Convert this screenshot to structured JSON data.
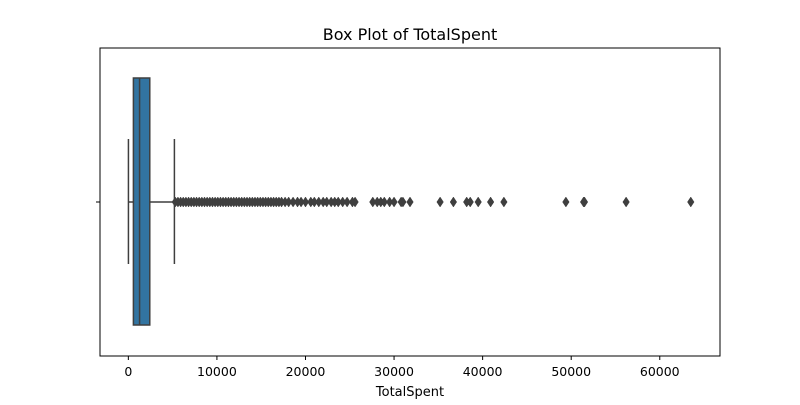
{
  "chart_data": {
    "type": "box",
    "title": "Box Plot of TotalSpent",
    "xlabel": "TotalSpent",
    "ylabel": "",
    "xlim": [
      -3200,
      66800
    ],
    "xticks": [
      0,
      10000,
      20000,
      30000,
      40000,
      50000,
      60000
    ],
    "xtick_labels": [
      "0",
      "10000",
      "20000",
      "30000",
      "40000",
      "50000",
      "60000"
    ],
    "grid": false,
    "colors": {
      "box_fill": "#3274a1",
      "lines": "#3f3f3f",
      "outliers": "#3f3f3f"
    },
    "box": {
      "whisker_low": 10,
      "q1": 570,
      "median": 1270,
      "q3": 2420,
      "whisker_high": 5200
    },
    "outliers": [
      5300,
      5600,
      5900,
      6200,
      6500,
      6800,
      7100,
      7400,
      7700,
      8000,
      8300,
      8600,
      8900,
      9200,
      9500,
      9800,
      10100,
      10400,
      10700,
      11000,
      11300,
      11600,
      11900,
      12200,
      12500,
      12800,
      13100,
      13400,
      13700,
      14000,
      14300,
      14600,
      14900,
      15200,
      15500,
      15800,
      16100,
      16400,
      16700,
      17000,
      17300,
      17700,
      18100,
      18600,
      19100,
      19500,
      20000,
      20600,
      21000,
      21500,
      22000,
      22400,
      22900,
      23300,
      23700,
      24200,
      24700,
      25300,
      25600,
      27600,
      28100,
      28500,
      28900,
      29500,
      30000,
      30800,
      31000,
      31800,
      35200,
      36700,
      38200,
      38600,
      39500,
      40900,
      42400,
      49400,
      51400,
      51500,
      56200,
      63500
    ]
  }
}
